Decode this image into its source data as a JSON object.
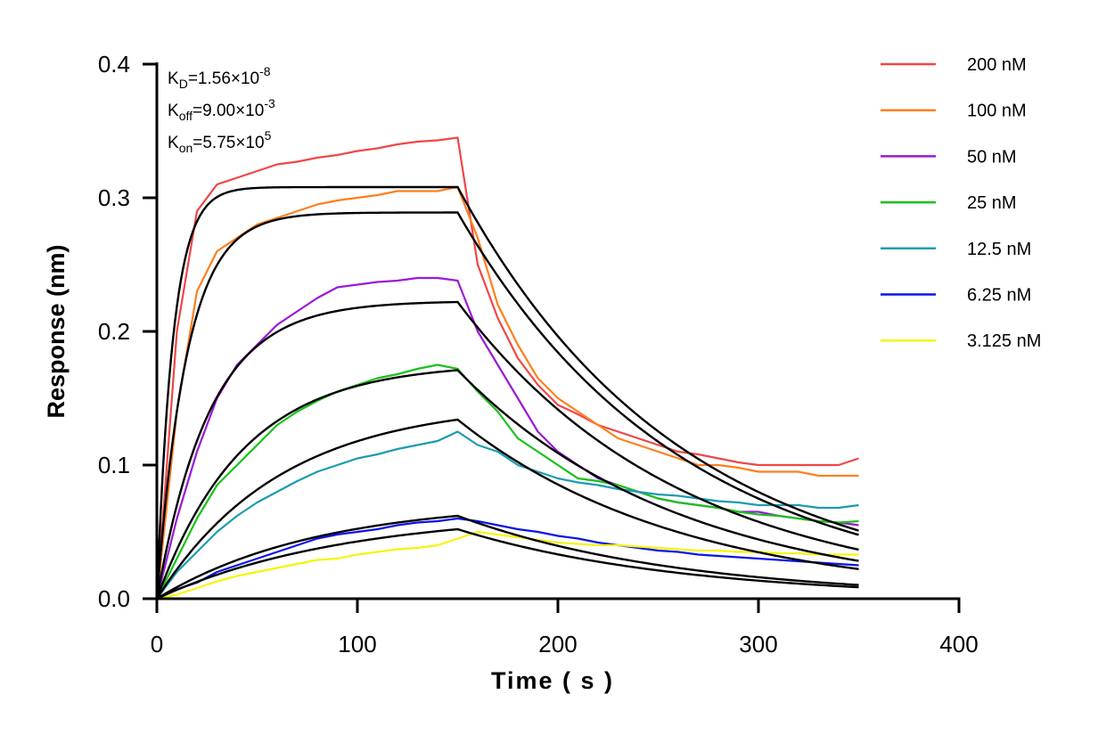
{
  "chart_data": {
    "type": "line",
    "xlabel": "Time ( s )",
    "ylabel": "Response (nm)",
    "xlim": [
      0,
      400
    ],
    "ylim": [
      0,
      0.4
    ],
    "xticks": [
      "0",
      "100",
      "200",
      "300",
      "400"
    ],
    "yticks": [
      "0.0",
      "0.1",
      "0.2",
      "0.3",
      "0.4"
    ],
    "grid": false,
    "legend_position": "top-right",
    "annotations": [
      {
        "base": "K",
        "sub": "D",
        "value": "=1.56×10",
        "exp": "-8"
      },
      {
        "base": "K",
        "sub": "off",
        "value": "=9.00×10",
        "exp": "-3"
      },
      {
        "base": "K",
        "sub": "on",
        "value": "=5.75×10",
        "exp": "5"
      }
    ],
    "fit_model": {
      "kon": 575000,
      "koff": 0.009,
      "association_end": 150,
      "color": "#000000"
    },
    "x": [
      0,
      10,
      20,
      30,
      40,
      50,
      60,
      70,
      80,
      90,
      100,
      110,
      120,
      130,
      140,
      150,
      160,
      170,
      180,
      190,
      200,
      210,
      220,
      230,
      240,
      250,
      260,
      270,
      280,
      290,
      300,
      310,
      320,
      330,
      340,
      350
    ],
    "series": [
      {
        "name": "200 nM",
        "conc_nM": 200,
        "color": "#f04646",
        "fit_at_150": 0.308,
        "values": [
          0,
          0.2,
          0.29,
          0.31,
          0.315,
          0.32,
          0.325,
          0.327,
          0.33,
          0.332,
          0.335,
          0.337,
          0.34,
          0.342,
          0.343,
          0.345,
          0.25,
          0.21,
          0.18,
          0.16,
          0.145,
          0.138,
          0.13,
          0.125,
          0.12,
          0.115,
          0.11,
          0.108,
          0.105,
          0.102,
          0.1,
          0.1,
          0.1,
          0.1,
          0.1,
          0.105
        ]
      },
      {
        "name": "100 nM",
        "conc_nM": 100,
        "color": "#ff7f1e",
        "fit_at_150": 0.289,
        "values": [
          0,
          0.14,
          0.23,
          0.26,
          0.27,
          0.28,
          0.285,
          0.29,
          0.295,
          0.298,
          0.3,
          0.302,
          0.305,
          0.305,
          0.305,
          0.308,
          0.27,
          0.22,
          0.19,
          0.165,
          0.15,
          0.14,
          0.13,
          0.12,
          0.115,
          0.11,
          0.105,
          0.1,
          0.1,
          0.098,
          0.095,
          0.095,
          0.095,
          0.092,
          0.092,
          0.092
        ]
      },
      {
        "name": "50 nM",
        "conc_nM": 50,
        "color": "#9b19d6",
        "fit_at_150": 0.222,
        "values": [
          0,
          0.06,
          0.11,
          0.15,
          0.175,
          0.19,
          0.205,
          0.215,
          0.225,
          0.233,
          0.235,
          0.237,
          0.238,
          0.24,
          0.24,
          0.238,
          0.2,
          0.175,
          0.15,
          0.125,
          0.11,
          0.1,
          0.09,
          0.085,
          0.08,
          0.075,
          0.072,
          0.07,
          0.068,
          0.065,
          0.065,
          0.062,
          0.06,
          0.058,
          0.057,
          0.055
        ]
      },
      {
        "name": "25 nM",
        "conc_nM": 25,
        "color": "#19c219",
        "fit_at_150": 0.171,
        "values": [
          0,
          0.03,
          0.06,
          0.085,
          0.1,
          0.115,
          0.13,
          0.14,
          0.148,
          0.155,
          0.16,
          0.165,
          0.168,
          0.172,
          0.175,
          0.172,
          0.155,
          0.14,
          0.12,
          0.11,
          0.1,
          0.09,
          0.088,
          0.085,
          0.08,
          0.075,
          0.072,
          0.07,
          0.068,
          0.065,
          0.063,
          0.062,
          0.06,
          0.058,
          0.057,
          0.058
        ]
      },
      {
        "name": "12.5 nM",
        "conc_nM": 12.5,
        "color": "#1d9bb0",
        "fit_at_150": 0.134,
        "values": [
          0,
          0.02,
          0.035,
          0.05,
          0.062,
          0.072,
          0.08,
          0.088,
          0.095,
          0.1,
          0.105,
          0.108,
          0.112,
          0.115,
          0.118,
          0.125,
          0.115,
          0.11,
          0.1,
          0.095,
          0.09,
          0.087,
          0.085,
          0.082,
          0.08,
          0.078,
          0.077,
          0.075,
          0.073,
          0.072,
          0.07,
          0.07,
          0.07,
          0.068,
          0.068,
          0.07
        ]
      },
      {
        "name": "6.25 nM",
        "conc_nM": 6.25,
        "color": "#0a14e8",
        "fit_at_150": 0.062,
        "values": [
          0,
          0.007,
          0.012,
          0.02,
          0.025,
          0.03,
          0.035,
          0.04,
          0.045,
          0.048,
          0.05,
          0.052,
          0.055,
          0.057,
          0.058,
          0.06,
          0.058,
          0.055,
          0.052,
          0.05,
          0.047,
          0.045,
          0.042,
          0.04,
          0.038,
          0.036,
          0.035,
          0.033,
          0.032,
          0.031,
          0.03,
          0.029,
          0.028,
          0.027,
          0.026,
          0.025
        ]
      },
      {
        "name": "3.125 nM",
        "conc_nM": 3.125,
        "color": "#f5f50a",
        "fit_at_150": 0.052,
        "values": [
          0,
          0.003,
          0.008,
          0.013,
          0.017,
          0.02,
          0.023,
          0.026,
          0.029,
          0.03,
          0.033,
          0.035,
          0.037,
          0.038,
          0.04,
          0.045,
          0.05,
          0.048,
          0.046,
          0.044,
          0.042,
          0.041,
          0.04,
          0.04,
          0.039,
          0.038,
          0.037,
          0.036,
          0.036,
          0.035,
          0.035,
          0.034,
          0.034,
          0.033,
          0.033,
          0.033
        ]
      }
    ]
  }
}
